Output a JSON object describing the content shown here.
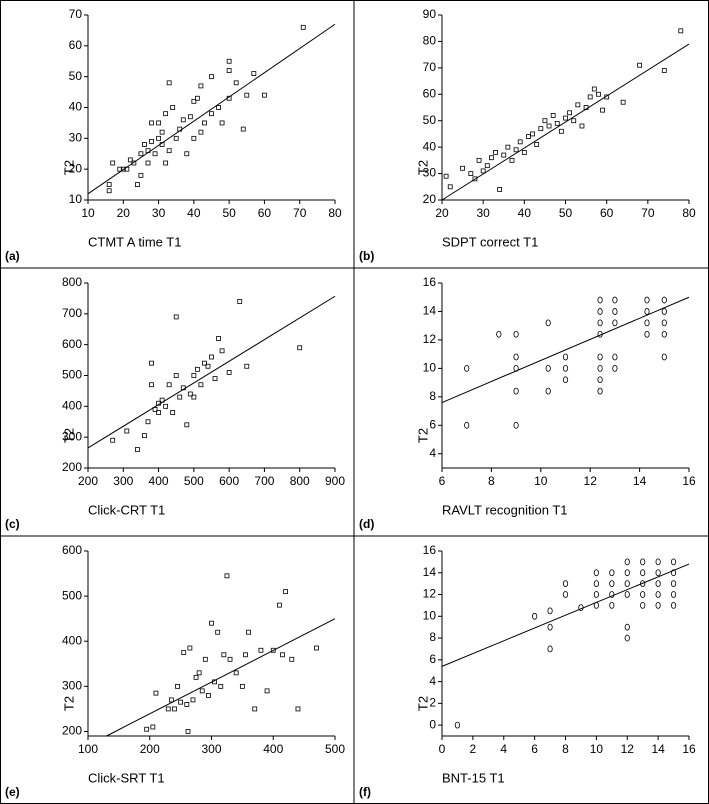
{
  "chart_data": [
    {
      "type": "scatter",
      "panel_label": "(a)",
      "x_label": "CTMT A time T1",
      "y_label": "T2",
      "marker": "square",
      "color": "#000000",
      "xlim": [
        10,
        80
      ],
      "ylim": [
        10,
        70
      ],
      "xticks": [
        10,
        20,
        30,
        40,
        50,
        60,
        70,
        80
      ],
      "yticks": [
        10,
        20,
        30,
        40,
        50,
        60,
        70
      ],
      "x": [
        16,
        16,
        17,
        19,
        20,
        21,
        22,
        23,
        24,
        25,
        25,
        26,
        27,
        27,
        28,
        28,
        29,
        30,
        30,
        31,
        31,
        32,
        32,
        33,
        33,
        34,
        35,
        36,
        37,
        38,
        39,
        40,
        40,
        41,
        42,
        42,
        43,
        45,
        45,
        47,
        48,
        50,
        50,
        50,
        52,
        54,
        55,
        57,
        60,
        71
      ],
      "values": [
        15,
        13,
        22,
        20,
        20,
        20,
        23,
        22,
        15,
        18,
        25,
        28,
        22,
        26,
        29,
        35,
        25,
        30,
        35,
        28,
        32,
        22,
        38,
        26,
        48,
        40,
        30,
        33,
        36,
        25,
        37,
        42,
        30,
        43,
        47,
        32,
        35,
        50,
        38,
        40,
        35,
        55,
        52,
        43,
        48,
        33,
        44,
        51,
        44,
        66
      ],
      "fit_line": {
        "x": [
          10,
          80
        ],
        "values": [
          12,
          67
        ]
      }
    },
    {
      "type": "scatter",
      "panel_label": "(b)",
      "x_label": "SDPT correct T1",
      "y_label": "T2",
      "marker": "square",
      "color": "#000000",
      "xlim": [
        20,
        80
      ],
      "ylim": [
        20,
        90
      ],
      "xticks": [
        20,
        30,
        40,
        50,
        60,
        70,
        80
      ],
      "yticks": [
        20,
        30,
        40,
        50,
        60,
        70,
        80,
        90
      ],
      "x": [
        21,
        22,
        25,
        27,
        28,
        29,
        30,
        31,
        32,
        33,
        34,
        35,
        36,
        37,
        38,
        39,
        40,
        41,
        42,
        43,
        44,
        45,
        46,
        47,
        48,
        49,
        50,
        51,
        52,
        53,
        54,
        55,
        56,
        57,
        58,
        59,
        60,
        64,
        68,
        74,
        78
      ],
      "values": [
        29,
        25,
        32,
        30,
        28,
        35,
        31,
        33,
        36,
        38,
        24,
        37,
        40,
        35,
        39,
        42,
        38,
        44,
        45,
        41,
        47,
        50,
        48,
        52,
        49,
        46,
        51,
        53,
        50,
        56,
        48,
        55,
        59,
        62,
        60,
        54,
        59,
        57,
        71,
        69,
        84
      ],
      "fit_line": {
        "x": [
          20,
          80
        ],
        "values": [
          20,
          79
        ]
      }
    },
    {
      "type": "scatter",
      "panel_label": "(c)",
      "x_label": "Click-CRT T1",
      "y_label": "T2",
      "marker": "square",
      "color": "#000000",
      "xlim": [
        200,
        900
      ],
      "ylim": [
        200,
        800
      ],
      "xticks": [
        200,
        300,
        400,
        500,
        600,
        700,
        800,
        900
      ],
      "yticks": [
        200,
        300,
        400,
        500,
        600,
        700,
        800
      ],
      "x": [
        270,
        310,
        340,
        360,
        370,
        380,
        390,
        400,
        410,
        420,
        430,
        440,
        450,
        460,
        470,
        480,
        490,
        500,
        510,
        520,
        530,
        540,
        560,
        570,
        580,
        600,
        630,
        650,
        800,
        380,
        400,
        450,
        500,
        550
      ],
      "values": [
        290,
        320,
        260,
        305,
        350,
        470,
        390,
        410,
        420,
        400,
        470,
        380,
        690,
        430,
        460,
        340,
        440,
        500,
        520,
        470,
        540,
        530,
        490,
        620,
        580,
        510,
        740,
        530,
        590,
        540,
        380,
        500,
        430,
        560
      ],
      "fit_line": {
        "x": [
          200,
          900
        ],
        "values": [
          265,
          757
        ]
      }
    },
    {
      "type": "scatter",
      "panel_label": "(d)",
      "x_label": "RAVLT recognition T1",
      "y_label": "T2",
      "marker": "circle",
      "color": "#000000",
      "xlim": [
        6,
        16
      ],
      "ylim": [
        3,
        16
      ],
      "xticks": [
        6,
        8,
        10,
        12,
        14,
        16
      ],
      "yticks": [
        4,
        6,
        8,
        10,
        12,
        14,
        16
      ],
      "x": [
        7,
        7,
        8.3,
        9,
        9,
        9,
        9,
        9,
        10.3,
        10.3,
        10.3,
        11,
        11,
        11,
        12.4,
        12.4,
        12.4,
        12.4,
        12.4,
        12.4,
        12.4,
        12.4,
        13,
        13,
        13,
        13,
        13,
        14.3,
        14.3,
        14.3,
        14.3,
        15,
        15,
        15,
        15,
        15
      ],
      "values": [
        10,
        6,
        12.4,
        12.4,
        10.8,
        10,
        8.4,
        6,
        13.2,
        10,
        8.4,
        10.8,
        10,
        9.2,
        14.8,
        14,
        13.2,
        12.4,
        10.8,
        10,
        9.2,
        8.4,
        14.8,
        14,
        13.2,
        10.8,
        10,
        14.8,
        14,
        13.2,
        12.4,
        14.8,
        14,
        13.2,
        12.4,
        10.8
      ],
      "fit_line": {
        "x": [
          6,
          16
        ],
        "values": [
          7.6,
          15
        ]
      }
    },
    {
      "type": "scatter",
      "panel_label": "(e)",
      "x_label": "Click-SRT T1",
      "y_label": "T2",
      "marker": "square",
      "color": "#000000",
      "xlim": [
        100,
        500
      ],
      "ylim": [
        190,
        600
      ],
      "xticks": [
        100,
        200,
        300,
        400,
        500
      ],
      "yticks": [
        200,
        300,
        400,
        500,
        600
      ],
      "x": [
        195,
        205,
        210,
        230,
        235,
        240,
        245,
        250,
        255,
        260,
        262,
        265,
        270,
        275,
        280,
        285,
        290,
        295,
        300,
        305,
        310,
        315,
        320,
        325,
        330,
        340,
        350,
        355,
        360,
        370,
        380,
        390,
        400,
        410,
        415,
        420,
        430,
        440,
        470
      ],
      "values": [
        205,
        210,
        285,
        250,
        270,
        250,
        300,
        265,
        375,
        260,
        200,
        385,
        270,
        320,
        330,
        290,
        360,
        280,
        440,
        310,
        420,
        300,
        370,
        545,
        360,
        330,
        300,
        370,
        420,
        250,
        380,
        290,
        380,
        480,
        370,
        510,
        360,
        250,
        385
      ],
      "fit_line": {
        "x": [
          130,
          500
        ],
        "values": [
          190,
          450
        ]
      }
    },
    {
      "type": "scatter",
      "panel_label": "(f)",
      "x_label": "BNT-15 T1",
      "y_label": "T2",
      "marker": "circle",
      "color": "#000000",
      "xlim": [
        0,
        16
      ],
      "ylim": [
        -1,
        16
      ],
      "xticks": [
        0,
        2,
        4,
        6,
        8,
        10,
        12,
        14,
        16
      ],
      "yticks": [
        0,
        2,
        4,
        6,
        8,
        10,
        12,
        14,
        16
      ],
      "x": [
        1,
        6,
        7,
        7,
        7,
        8,
        8,
        9,
        10,
        10,
        10,
        10,
        11,
        11,
        11,
        11,
        12,
        12,
        12,
        12,
        12,
        12,
        13,
        13,
        13,
        13,
        13,
        14,
        14,
        14,
        14,
        14,
        15,
        15,
        15,
        15,
        15
      ],
      "values": [
        0,
        10,
        10.5,
        9,
        7,
        12,
        13,
        10.8,
        14,
        13,
        12,
        11,
        14,
        13,
        12,
        11,
        15,
        14,
        13,
        12,
        9,
        8,
        15,
        14,
        13,
        12,
        11,
        15,
        14,
        13,
        12,
        11,
        15,
        14,
        13,
        12,
        11
      ],
      "fit_line": {
        "x": [
          0,
          16
        ],
        "values": [
          5.4,
          14.8
        ]
      }
    }
  ]
}
